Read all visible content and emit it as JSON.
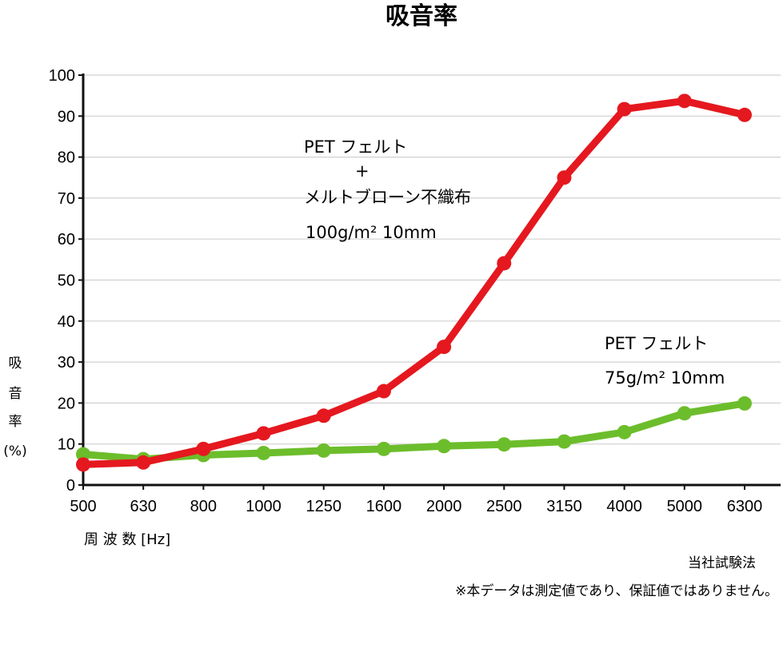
{
  "chart_data": {
    "type": "line",
    "title": "吸音率",
    "ylabel_chars": [
      "吸",
      "音",
      "率",
      "(%)"
    ],
    "xlabel": "周 波 数 [Hz]",
    "categories": [
      "500",
      "630",
      "800",
      "1000",
      "1250",
      "1600",
      "2000",
      "2500",
      "3150",
      "4000",
      "5000",
      "6300"
    ],
    "ylim": [
      0,
      100
    ],
    "yticks": [
      0,
      10,
      20,
      30,
      40,
      50,
      60,
      70,
      80,
      90,
      100
    ],
    "grid": true,
    "series": [
      {
        "color": "#6cbd2b",
        "values": [
          7.5,
          6.3,
          7.3,
          7.8,
          8.4,
          8.8,
          9.5,
          9.9,
          10.6,
          12.9,
          17.5,
          19.9
        ]
      },
      {
        "color": "#e5181f",
        "values": [
          5.0,
          5.5,
          8.8,
          12.6,
          16.9,
          22.9,
          33.7,
          54.1,
          75.0,
          91.7,
          93.7,
          90.3
        ]
      }
    ],
    "annotations": {
      "red": {
        "line1": "PET フェルト",
        "plus": "+",
        "line2": "メルトブローン不織布",
        "spec": "100g/m² 10mm"
      },
      "green": {
        "line1": "PET フェルト",
        "spec": "75g/m² 10mm"
      }
    }
  },
  "notes": {
    "source": "当社試験法",
    "disclaimer": "※本データは測定値であり、保証値ではありません。"
  }
}
